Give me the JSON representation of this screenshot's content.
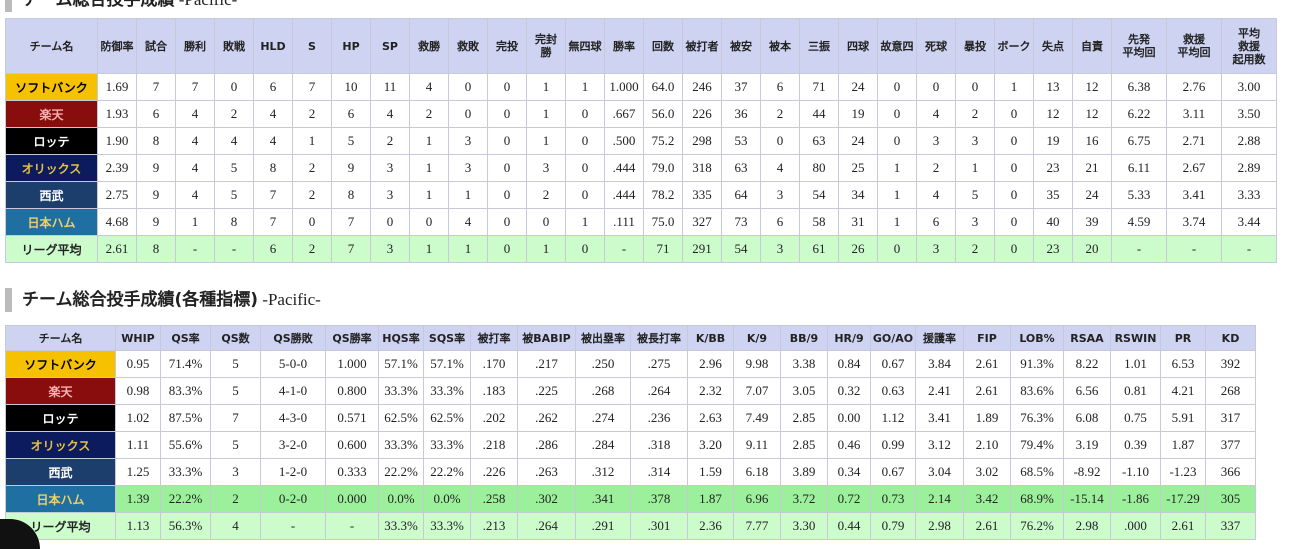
{
  "section1": {
    "title": "チーム総合投手成績 -Pacific-",
    "table": {
      "headers": [
        "チーム名",
        "防御率",
        "試合",
        "勝利",
        "敗戦",
        "HLD",
        "S",
        "HP",
        "SP",
        "救勝",
        "救敗",
        "完投",
        "完封\n勝",
        "無四球",
        "勝率",
        "回数",
        "被打者",
        "被安",
        "被本",
        "三振",
        "四球",
        "故意四",
        "死球",
        "暴投",
        "ボーク",
        "失点",
        "自責",
        "先発\n平均回",
        "救援\n平均回",
        "平均\n救援\n起用数"
      ],
      "rows": [
        [
          "ソフトバンク",
          "1.69",
          "7",
          "7",
          "0",
          "6",
          "7",
          "10",
          "11",
          "4",
          "0",
          "0",
          "1",
          "1",
          "1.000",
          "64.0",
          "246",
          "37",
          "6",
          "71",
          "24",
          "0",
          "0",
          "0",
          "1",
          "13",
          "12",
          "6.38",
          "2.76",
          "3.00"
        ],
        [
          "楽天",
          "1.93",
          "6",
          "4",
          "2",
          "4",
          "2",
          "6",
          "4",
          "2",
          "0",
          "0",
          "1",
          "0",
          ".667",
          "56.0",
          "226",
          "36",
          "2",
          "44",
          "19",
          "0",
          "4",
          "2",
          "0",
          "12",
          "12",
          "6.22",
          "3.11",
          "3.50"
        ],
        [
          "ロッテ",
          "1.90",
          "8",
          "4",
          "4",
          "4",
          "1",
          "5",
          "2",
          "1",
          "3",
          "0",
          "1",
          "0",
          ".500",
          "75.2",
          "298",
          "53",
          "0",
          "63",
          "24",
          "0",
          "3",
          "3",
          "0",
          "19",
          "16",
          "6.75",
          "2.71",
          "2.88"
        ],
        [
          "オリックス",
          "2.39",
          "9",
          "4",
          "5",
          "8",
          "2",
          "9",
          "3",
          "1",
          "3",
          "0",
          "3",
          "0",
          ".444",
          "79.0",
          "318",
          "63",
          "4",
          "80",
          "25",
          "1",
          "2",
          "1",
          "0",
          "23",
          "21",
          "6.11",
          "2.67",
          "2.89"
        ],
        [
          "西武",
          "2.75",
          "9",
          "4",
          "5",
          "7",
          "2",
          "8",
          "3",
          "1",
          "1",
          "0",
          "2",
          "0",
          ".444",
          "78.2",
          "335",
          "64",
          "3",
          "54",
          "34",
          "1",
          "4",
          "5",
          "0",
          "35",
          "24",
          "5.33",
          "3.41",
          "3.33"
        ],
        [
          "日本ハム",
          "4.68",
          "9",
          "1",
          "8",
          "7",
          "0",
          "7",
          "0",
          "0",
          "4",
          "0",
          "0",
          "1",
          ".111",
          "75.0",
          "327",
          "73",
          "6",
          "58",
          "31",
          "1",
          "6",
          "3",
          "0",
          "40",
          "39",
          "4.59",
          "3.74",
          "3.44"
        ],
        [
          "リーグ平均",
          "2.61",
          "8",
          "-",
          "-",
          "6",
          "2",
          "7",
          "3",
          "1",
          "1",
          "0",
          "1",
          "0",
          "-",
          "71",
          "291",
          "54",
          "3",
          "61",
          "26",
          "0",
          "3",
          "2",
          "0",
          "23",
          "20",
          "-",
          "-",
          "-"
        ]
      ]
    }
  },
  "section2": {
    "title": "チーム総合投手成績(各種指標) -Pacific-",
    "table": {
      "headers": [
        "チーム名",
        "WHIP",
        "QS率",
        "QS数",
        "QS勝敗",
        "QS勝率",
        "HQS率",
        "SQS率",
        "被打率",
        "被BABIP",
        "被出塁率",
        "被長打率",
        "K/BB",
        "K/9",
        "BB/9",
        "HR/9",
        "GO/AO",
        "援護率",
        "FIP",
        "LOB%",
        "RSAA",
        "RSWIN",
        "PR",
        "KD"
      ],
      "rows": [
        [
          "ソフトバンク",
          "0.95",
          "71.4%",
          "5",
          "5-0-0",
          "1.000",
          "57.1%",
          "57.1%",
          ".170",
          ".217",
          ".250",
          ".275",
          "2.96",
          "9.98",
          "3.38",
          "0.84",
          "0.67",
          "3.84",
          "2.61",
          "91.3%",
          "8.22",
          "1.01",
          "6.53",
          "392"
        ],
        [
          "楽天",
          "0.98",
          "83.3%",
          "5",
          "4-1-0",
          "0.800",
          "33.3%",
          "33.3%",
          ".183",
          ".225",
          ".268",
          ".264",
          "2.32",
          "7.07",
          "3.05",
          "0.32",
          "0.63",
          "2.41",
          "2.61",
          "83.6%",
          "6.56",
          "0.81",
          "4.21",
          "268"
        ],
        [
          "ロッテ",
          "1.02",
          "87.5%",
          "7",
          "4-3-0",
          "0.571",
          "62.5%",
          "62.5%",
          ".202",
          ".262",
          ".274",
          ".236",
          "2.63",
          "7.49",
          "2.85",
          "0.00",
          "1.12",
          "3.41",
          "1.89",
          "76.3%",
          "6.08",
          "0.75",
          "5.91",
          "317"
        ],
        [
          "オリックス",
          "1.11",
          "55.6%",
          "5",
          "3-2-0",
          "0.600",
          "33.3%",
          "33.3%",
          ".218",
          ".286",
          ".284",
          ".318",
          "3.20",
          "9.11",
          "2.85",
          "0.46",
          "0.99",
          "3.12",
          "2.10",
          "79.4%",
          "3.19",
          "0.39",
          "1.87",
          "377"
        ],
        [
          "西武",
          "1.25",
          "33.3%",
          "3",
          "1-2-0",
          "0.333",
          "22.2%",
          "22.2%",
          ".226",
          ".263",
          ".312",
          ".314",
          "1.59",
          "6.18",
          "3.89",
          "0.34",
          "0.67",
          "3.04",
          "3.02",
          "68.5%",
          "-8.92",
          "-1.10",
          "-1.23",
          "366"
        ],
        [
          "日本ハム",
          "1.39",
          "22.2%",
          "2",
          "0-2-0",
          "0.000",
          "0.0%",
          "0.0%",
          ".258",
          ".302",
          ".341",
          ".378",
          "1.87",
          "6.96",
          "3.72",
          "0.72",
          "0.73",
          "2.14",
          "3.42",
          "68.9%",
          "-15.14",
          "-1.86",
          "-17.29",
          "305"
        ],
        [
          "リーグ平均",
          "1.13",
          "56.3%",
          "4",
          "-",
          "-",
          "33.3%",
          "33.3%",
          ".213",
          ".264",
          ".291",
          ".301",
          "2.36",
          "7.77",
          "3.30",
          "0.44",
          "0.79",
          "2.98",
          "2.61",
          "76.2%",
          "2.98",
          ".000",
          "2.61",
          "337"
        ]
      ]
    }
  }
}
